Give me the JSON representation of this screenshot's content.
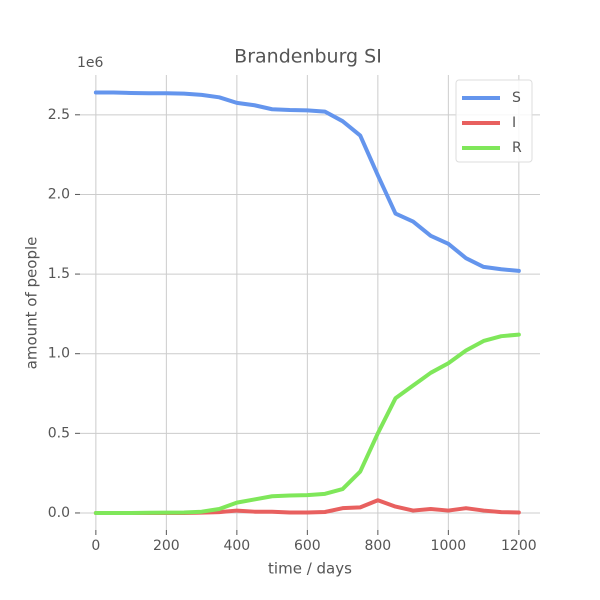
{
  "chart_data": {
    "type": "line",
    "title": "Brandenburg SI",
    "x_label": "time / days",
    "y_label": "amount of people",
    "y_offset_label": "1e6",
    "x": [
      0,
      50,
      100,
      150,
      200,
      250,
      300,
      350,
      400,
      450,
      500,
      550,
      600,
      650,
      700,
      750,
      800,
      850,
      900,
      950,
      1000,
      1050,
      1100,
      1150,
      1200
    ],
    "series": [
      {
        "name": "S",
        "color": "#6495ed",
        "values": [
          2.64,
          2.64,
          2.637,
          2.635,
          2.635,
          2.633,
          2.625,
          2.61,
          2.575,
          2.56,
          2.535,
          2.53,
          2.528,
          2.52,
          2.46,
          2.37,
          2.12,
          1.88,
          1.83,
          1.74,
          1.69,
          1.6,
          1.545,
          1.53,
          1.52
        ]
      },
      {
        "name": "I",
        "color": "#e8605f",
        "values": [
          0,
          0,
          0,
          0,
          0,
          0,
          0.002,
          0.005,
          0.015,
          0.008,
          0.008,
          0.003,
          0.003,
          0.006,
          0.03,
          0.035,
          0.08,
          0.04,
          0.015,
          0.025,
          0.015,
          0.03,
          0.015,
          0.005,
          0.003
        ]
      },
      {
        "name": "R",
        "color": "#7fe75a",
        "values": [
          0,
          0,
          0,
          0.001,
          0.002,
          0.003,
          0.008,
          0.025,
          0.065,
          0.085,
          0.105,
          0.11,
          0.112,
          0.12,
          0.15,
          0.26,
          0.5,
          0.72,
          0.8,
          0.88,
          0.94,
          1.02,
          1.08,
          1.11,
          1.12
        ]
      }
    ],
    "xlim": [
      -45,
      1260
    ],
    "ylim": [
      -0.107,
      2.75
    ],
    "xticks": [
      0,
      200,
      400,
      600,
      800,
      1000,
      1200
    ],
    "yticks": [
      {
        "value": 0,
        "label": "0.0"
      },
      0.5,
      {
        "value": 1,
        "label": "1.0"
      },
      1.5,
      {
        "value": 2,
        "label": "2.0"
      },
      2.5
    ],
    "grid": true,
    "legend": "upper right"
  }
}
